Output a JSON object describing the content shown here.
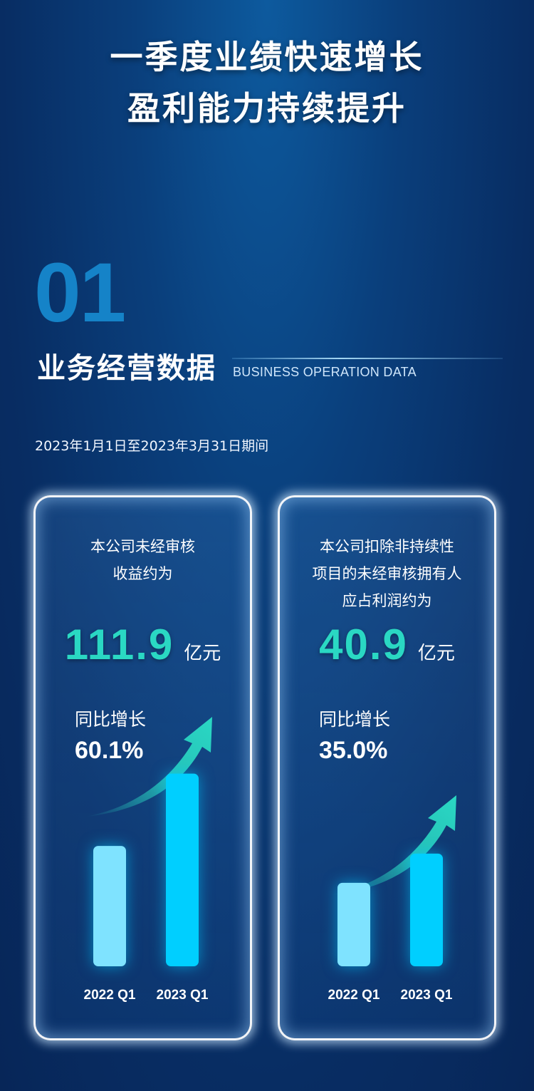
{
  "headline": {
    "line1": "一季度业绩快速增长",
    "line2": "盈利能力持续提升"
  },
  "section": {
    "number": "01",
    "title": "业务经营数据",
    "subtitle": "BUSINESS OPERATION DATA",
    "period": "2023年1月1日至2023年3月31日期间"
  },
  "cards": [
    {
      "description": [
        "本公司未经审核",
        "收益约为"
      ],
      "value": "111.9",
      "unit": "亿元",
      "yoy_label": "同比增长",
      "yoy_value": "60.1%"
    },
    {
      "description": [
        "本公司扣除非持续性",
        "项目的未经审核拥有人",
        "应占利润约为"
      ],
      "value": "40.9",
      "unit": "亿元",
      "yoy_label": "同比增长",
      "yoy_value": "35.0%"
    }
  ],
  "colors": {
    "accent_value": "#2ad8c3",
    "bar_2022": "#7fe3ff",
    "bar_2023": "#00cfff",
    "arrow": "#2ad8c3"
  },
  "chart_data": [
    {
      "type": "bar",
      "categories": [
        "2022 Q1",
        "2023 Q1"
      ],
      "values": [
        69.9,
        111.9
      ],
      "ylim": [
        0,
        120
      ],
      "grid": false
    },
    {
      "type": "bar",
      "categories": [
        "2022 Q1",
        "2023 Q1"
      ],
      "values": [
        30.3,
        40.9
      ],
      "ylim": [
        0,
        75
      ],
      "grid": false
    }
  ]
}
